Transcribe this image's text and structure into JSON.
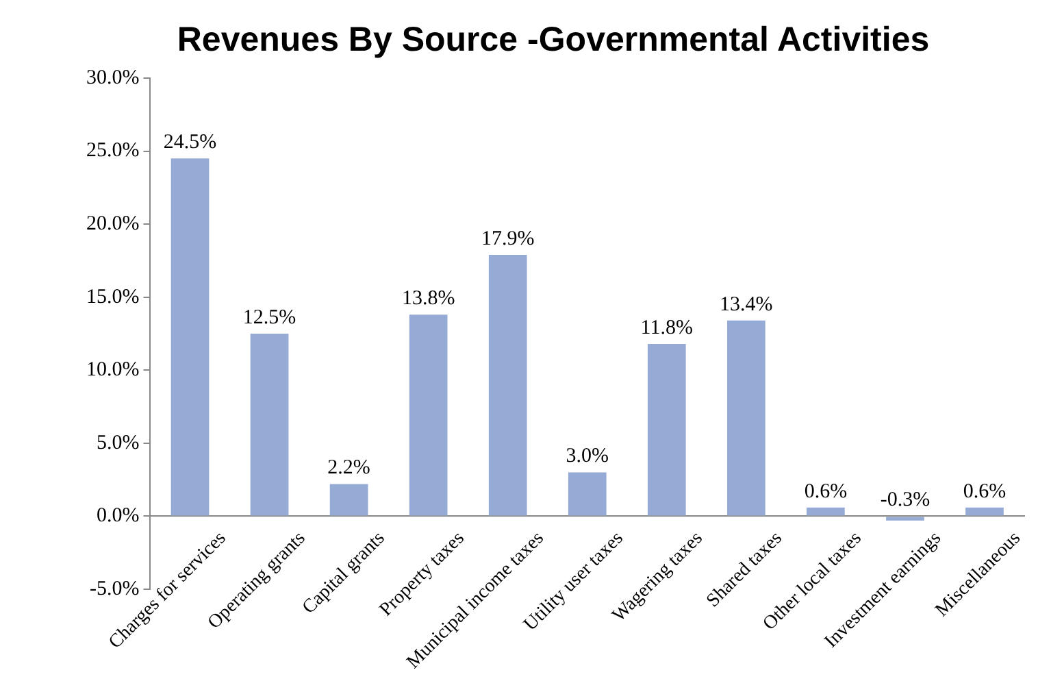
{
  "chart_data": {
    "type": "bar",
    "title": "Revenues By Source -Governmental Activities",
    "categories": [
      "Charges for services",
      "Operating grants",
      "Capital grants",
      "Property taxes",
      "Municipal income taxes",
      "Utility user taxes",
      "Wagering taxes",
      "Shared taxes",
      "Other local taxes",
      "Investment earnings",
      "Miscellaneous"
    ],
    "values": [
      24.5,
      12.5,
      2.2,
      13.8,
      17.9,
      3.0,
      11.8,
      13.4,
      0.6,
      -0.3,
      0.6
    ],
    "value_labels": [
      "24.5%",
      "12.5%",
      "2.2%",
      "13.8%",
      "17.9%",
      "3.0%",
      "11.8%",
      "13.4%",
      "0.6%",
      "-0.3%",
      "0.6%"
    ],
    "color": "#95abd5",
    "ylim": [
      -5,
      30
    ],
    "yticks": [
      {
        "value": -5,
        "label": "-5.0%"
      },
      {
        "value": 0,
        "label": "0.0%"
      },
      {
        "value": 5,
        "label": "5.0%"
      },
      {
        "value": 10,
        "label": "10.0%"
      },
      {
        "value": 15,
        "label": "15.0%"
      },
      {
        "value": 20,
        "label": "20.0%"
      },
      {
        "value": 25,
        "label": "25.0%"
      },
      {
        "value": 30,
        "label": "30.0%"
      }
    ],
    "grid": false,
    "legend": false
  }
}
